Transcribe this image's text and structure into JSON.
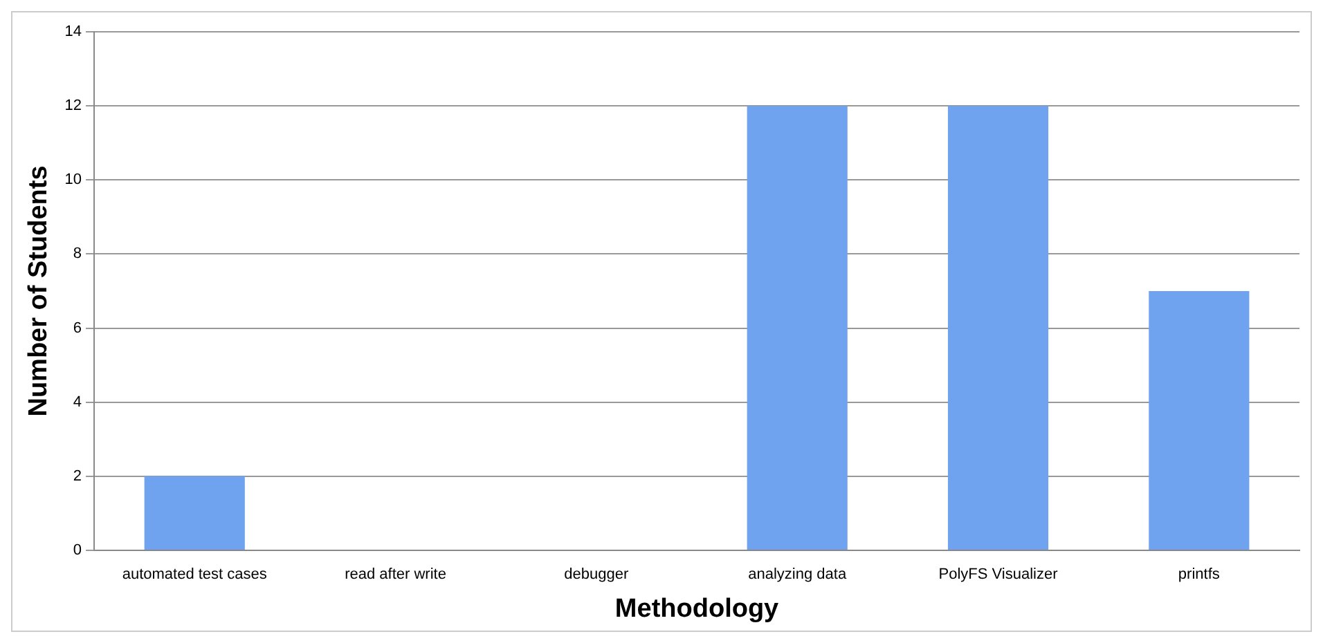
{
  "chart_data": {
    "type": "bar",
    "categories": [
      "automated test cases",
      "read after write",
      "debugger",
      "analyzing data",
      "PolyFS Visualizer",
      "printfs"
    ],
    "values": [
      2,
      0,
      0,
      12,
      12,
      7
    ],
    "color": "#6fa3ef",
    "xlabel": "Methodology",
    "ylabel": "Number of Students",
    "ylim": [
      0,
      14
    ],
    "yticks": [
      0,
      2,
      4,
      6,
      8,
      10,
      12,
      14
    ],
    "grid": "y",
    "legend": false
  }
}
